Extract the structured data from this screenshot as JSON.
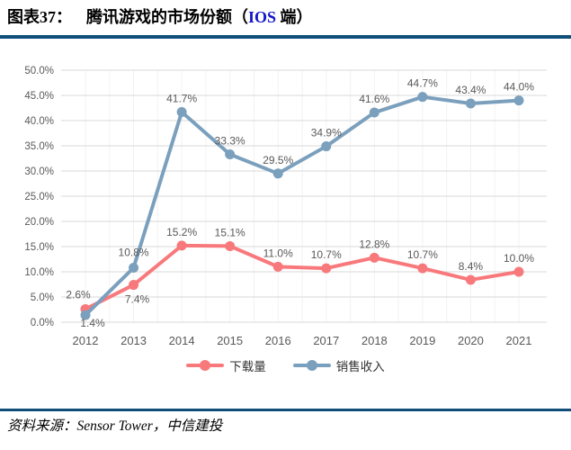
{
  "header": {
    "figure_label": "图表37：",
    "title_pre": "腾讯游戏的市场份额（",
    "title_ios": "IOS",
    "title_post": " 端）"
  },
  "chart_data": {
    "type": "line",
    "title": "腾讯游戏的市场份额（IOS 端）",
    "categories": [
      "2012",
      "2013",
      "2014",
      "2015",
      "2016",
      "2017",
      "2018",
      "2019",
      "2020",
      "2021"
    ],
    "series": [
      {
        "name": "下载量",
        "color": "#f8797c",
        "values": [
          2.6,
          7.4,
          15.2,
          15.1,
          11.0,
          10.7,
          12.8,
          10.7,
          8.4,
          10.0
        ],
        "point_labels": [
          "2.6%",
          "7.4%",
          "15.2%",
          "15.1%",
          "11.0%",
          "10.7%",
          "12.8%",
          "10.7%",
          "8.4%",
          "10.0%"
        ]
      },
      {
        "name": "销售收入",
        "color": "#7ba0bd",
        "values": [
          1.4,
          10.8,
          41.7,
          33.3,
          29.5,
          34.9,
          41.6,
          44.7,
          43.4,
          44.0
        ],
        "point_labels": [
          "1.4%",
          "10.8%",
          "41.7%",
          "33.3%",
          "29.5%",
          "34.9%",
          "41.6%",
          "44.7%",
          "43.4%",
          "44.0%"
        ]
      }
    ],
    "ylim": [
      0,
      50
    ],
    "ytick_step": 5,
    "yticks": [
      {
        "v": 0,
        "label": "0.0%"
      },
      {
        "v": 5,
        "label": "5.0%"
      },
      {
        "v": 10,
        "label": "10.0%"
      },
      {
        "v": 15,
        "label": "15.0%"
      },
      {
        "v": 20,
        "label": "20.0%"
      },
      {
        "v": 25,
        "label": "25.0%"
      },
      {
        "v": 30,
        "label": "30.0%"
      },
      {
        "v": 35,
        "label": "35.0%"
      },
      {
        "v": 40,
        "label": "40.0%"
      },
      {
        "v": 45,
        "label": "45.0%"
      },
      {
        "v": 50,
        "label": "50.0%"
      }
    ],
    "xlabel": "",
    "ylabel": "",
    "grid": "horizontal-major",
    "legend_position": "bottom"
  },
  "source": {
    "text": "资料来源：Sensor Tower，中信建投"
  },
  "colors": {
    "divider": "#0f4e79",
    "title_ios": "#1414cc",
    "axis_text": "#595959",
    "data_label": "#595959",
    "gridline": "#d9d9d9",
    "minor_vgrid": "#f2f2f2",
    "downloads_line": "#f8797c",
    "revenue_line": "#7ba0bd"
  }
}
